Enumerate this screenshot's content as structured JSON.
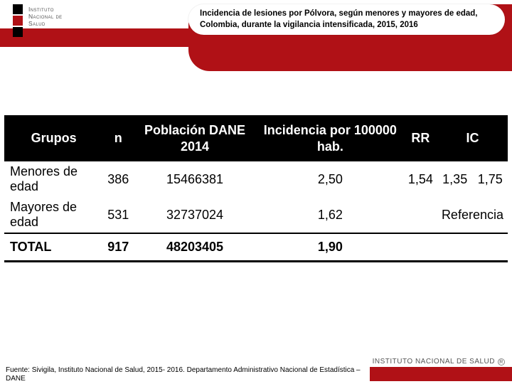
{
  "logo": {
    "line1": "Instituto",
    "line2": "Nacional de",
    "line3": "Salud",
    "bar_colors": [
      "#000000",
      "#b01116",
      "#000000"
    ]
  },
  "title": "Incidencia de lesiones por Pólvora, según menores y mayores de edad, Colombia, durante la vigilancia intensificada, 2015, 2016",
  "table": {
    "columns": [
      "Grupos",
      "n",
      "Población DANE 2014",
      "Incidencia por 100000 hab.",
      "RR",
      "IC",
      ""
    ],
    "rows": [
      {
        "grupo": "Menores de edad",
        "n": "386",
        "pob": "15466381",
        "inc": "2,50",
        "rr": "1,54",
        "ic1": "1,35",
        "ic2": "1,75"
      },
      {
        "grupo": "Mayores de edad",
        "n": "531",
        "pob": "32737024",
        "inc": "1,62",
        "rr": "",
        "ic1": "Referencia",
        "ic2": ""
      }
    ],
    "total": {
      "grupo": "TOTAL",
      "n": "917",
      "pob": "48203405",
      "inc": "1,90"
    }
  },
  "source": "Fuente: Sivigila, Instituto Nacional de Salud, 2015- 2016. Departamento Administrativo Nacional de Estadística – DANE",
  "footer_brand": "INSTITUTO NACIONAL DE SALUD",
  "colors": {
    "brand_red": "#b01116",
    "black": "#000000",
    "white": "#ffffff"
  }
}
